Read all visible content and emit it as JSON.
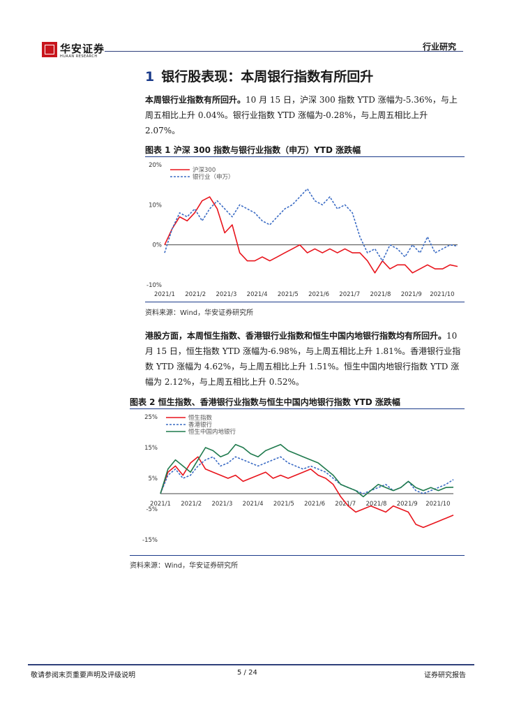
{
  "header": {
    "logo_cn": "华安证券",
    "logo_en": "HUAAN RESEARCH",
    "tag": "行业研究"
  },
  "section": {
    "number": "1",
    "title": "银行股表现：本周银行指数有所回升"
  },
  "paragraphs": {
    "p1_lead": "本周银行业指数有所回升。",
    "p1_body": "10 月 15 日，沪深 300 指数 YTD 涨幅为-5.36%，与上周五相比上升 0.04%。银行业指数 YTD 涨幅为-0.28%，与上周五相比上升 2.07%。",
    "p2_lead": "港股方面，本周恒生指数、香港银行业指数和恒生中国内地银行指数均有所回升。",
    "p2_body": "10 月 15 日，恒生指数 YTD 涨幅为-6.98%，与上周五相比上升 1.81%。香港银行业指数 YTD 涨幅为 4.62%，与上周五相比上升 1.51%。恒生中国内地银行指数 YTD 涨幅为 2.12%，与上周五相比上升 0.52%。"
  },
  "figures": {
    "fig1_title": "图表 1 沪深 300 指数与银行业指数（申万）YTD 涨跌幅",
    "fig1_source": "资料来源：Wind，华安证券研究所",
    "fig2_title": "图表 2 恒生指数、香港银行业指数与恒生中国内地银行指数 YTD 涨跌幅",
    "fig2_source": "资料来源：Wind，华安证券研究所"
  },
  "chart_data": [
    {
      "type": "line",
      "x_labels": [
        "2021/1",
        "2021/2",
        "2021/3",
        "2021/4",
        "2021/5",
        "2021/6",
        "2021/7",
        "2021/8",
        "2021/9",
        "2021/10"
      ],
      "y_ticks": [
        "20%",
        "10%",
        "0%",
        "-10%"
      ],
      "ylim": [
        -10,
        20
      ],
      "series": [
        {
          "name": "沪深300",
          "color": "#e8141c",
          "dash": false,
          "values": [
            0,
            4,
            7,
            6,
            8,
            11,
            12,
            9,
            3,
            5,
            -2,
            -4,
            -4,
            -3,
            -4,
            -3,
            -2,
            -1,
            0,
            -2,
            -1,
            -2,
            -1,
            -2,
            -1,
            -2,
            -2,
            -4,
            -7,
            -4,
            -6,
            -5,
            -5,
            -7,
            -6,
            -5,
            -6,
            -6,
            -5,
            -5.4
          ]
        },
        {
          "name": "银行业（申万）",
          "color": "#3a6bc4",
          "dash": true,
          "values": [
            -2,
            4,
            8,
            7,
            9,
            6,
            9,
            11,
            9,
            7,
            10,
            9,
            8,
            6,
            5,
            7,
            9,
            10,
            12,
            14,
            11,
            10,
            12,
            9,
            10,
            8,
            2,
            -2,
            -1,
            -4,
            0,
            -1,
            -3,
            0,
            -2,
            2,
            -2,
            -1,
            0,
            -0.3
          ]
        }
      ]
    },
    {
      "type": "line",
      "x_labels": [
        "2021/1",
        "2021/2",
        "2021/3",
        "2021/4",
        "2021/5",
        "2021/6",
        "2021/7",
        "2021/8",
        "2021/9",
        "2021/10"
      ],
      "y_ticks": [
        "25%",
        "15%",
        "5%",
        "-5%",
        "-15%"
      ],
      "ylim": [
        -15,
        25
      ],
      "series": [
        {
          "name": "恒生指数",
          "color": "#e8141c",
          "dash": false,
          "values": [
            0,
            7,
            9,
            6,
            10,
            12,
            8,
            7,
            6,
            5,
            6,
            4,
            5,
            6,
            7,
            5,
            6,
            5,
            6,
            7,
            8,
            6,
            5,
            3,
            -1,
            -4,
            -6,
            -5,
            -4,
            -5,
            -6,
            -4,
            -5,
            -6,
            -10,
            -11,
            -10,
            -9,
            -8,
            -7
          ]
        },
        {
          "name": "香港银行",
          "color": "#3a6bc4",
          "dash": true,
          "values": [
            0,
            6,
            8,
            5,
            6,
            9,
            11,
            12,
            9,
            10,
            12,
            11,
            10,
            9,
            10,
            11,
            12,
            10,
            9,
            8,
            9,
            8,
            7,
            5,
            3,
            2,
            1,
            0,
            1,
            2,
            3,
            1,
            2,
            4,
            1,
            0,
            1,
            2,
            3,
            4.6
          ]
        },
        {
          "name": "恒生中国内地银行",
          "color": "#1f7a4d",
          "dash": false,
          "values": [
            0,
            8,
            11,
            9,
            7,
            11,
            15,
            14,
            12,
            13,
            16,
            15,
            13,
            12,
            14,
            15,
            16,
            14,
            13,
            12,
            11,
            10,
            8,
            6,
            3,
            2,
            1,
            -1,
            1,
            3,
            2,
            1,
            2,
            4,
            2,
            1,
            2,
            1,
            2,
            2.1
          ]
        }
      ]
    }
  ],
  "footer": {
    "disclaimer": "敬请参阅末页重要声明及评级说明",
    "page": "5 / 24",
    "report_type": "证券研究报告"
  }
}
